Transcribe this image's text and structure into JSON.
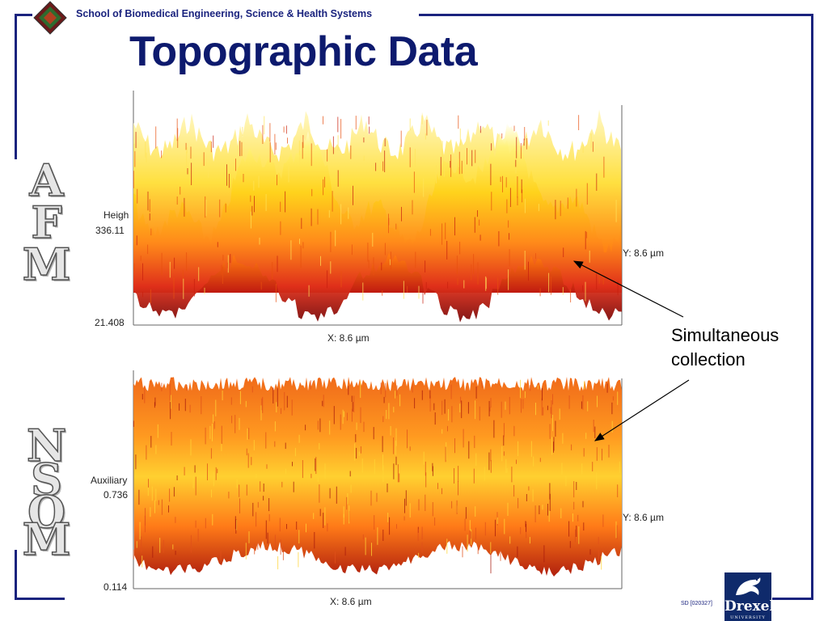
{
  "header": {
    "school": "School of Biomedical Engineering, Science & Health Systems"
  },
  "title": "Topographic Data",
  "side_labels": {
    "afm": [
      "A",
      "F",
      "M"
    ],
    "nsom": [
      "N",
      "S",
      "O",
      "M"
    ]
  },
  "plot_top": {
    "z_label": "Heigh",
    "z_max": "336.11",
    "z_min": "21.408",
    "x_label": "X: 8.6 µm",
    "y_label": "Y: 8.6 µm"
  },
  "plot_bottom": {
    "z_label": "Auxiliary",
    "z_max": "0.736",
    "z_min": "0.114",
    "x_label": "X: 8.6 µm",
    "y_label": "Y: 8.6 µm"
  },
  "annotation": {
    "line1": "Simultaneous",
    "line2": "collection"
  },
  "footer": {
    "code": "SD [020327]",
    "logo_word": "Drexel",
    "logo_sub": "UNIVERSITY"
  },
  "colors": {
    "frame": "#1a237e",
    "title": "#0d1a6e"
  }
}
